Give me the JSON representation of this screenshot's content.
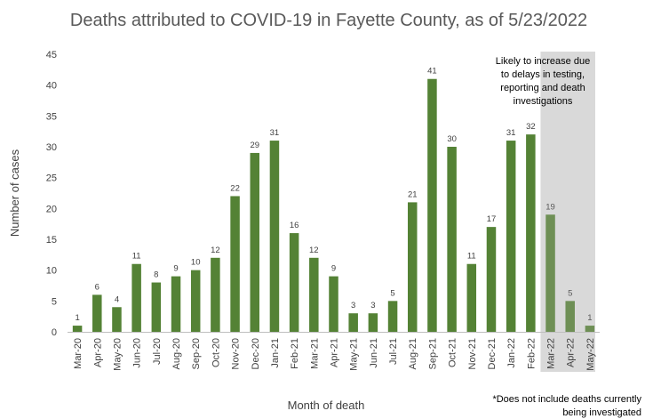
{
  "chart_data": {
    "type": "bar",
    "title": "Deaths attributed to COVID-19 in Fayette County, as of 5/23/2022",
    "xlabel": "Month of death",
    "ylabel": "Number of cases",
    "ylim": [
      0,
      45
    ],
    "yticks": [
      0,
      5,
      10,
      15,
      20,
      25,
      30,
      35,
      40,
      45
    ],
    "grid": false,
    "categories": [
      "Mar-20",
      "Apr-20",
      "May-20",
      "Jun-20",
      "Jul-20",
      "Aug-20",
      "Sep-20",
      "Oct-20",
      "Nov-20",
      "Dec-20",
      "Jan-21",
      "Feb-21",
      "Mar-21",
      "Apr-21",
      "May-21",
      "Jun-21",
      "Jul-21",
      "Aug-21",
      "Sep-21",
      "Oct-21",
      "Nov-21",
      "Dec-21",
      "Jan-22",
      "Feb-22",
      "Mar-22",
      "Apr-22",
      "May-22"
    ],
    "values": [
      1,
      6,
      4,
      11,
      8,
      9,
      10,
      12,
      22,
      29,
      31,
      16,
      12,
      9,
      3,
      3,
      5,
      21,
      41,
      30,
      11,
      17,
      31,
      32,
      19,
      5,
      1
    ],
    "provisional_from": "Mar-22",
    "colors": {
      "bar": "#548235",
      "bar_provisional": "#6e8f55",
      "shade": "#d9d9d9"
    },
    "annotation": [
      "Likely to increase due",
      "to delays in testing,",
      "reporting and death",
      "investigations"
    ],
    "footnote": [
      "*Does not include deaths currently",
      "being investigated"
    ]
  }
}
